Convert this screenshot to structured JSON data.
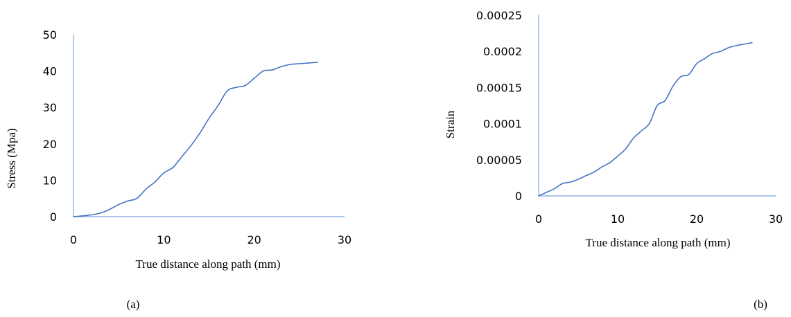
{
  "chart_data": [
    {
      "type": "line",
      "caption": "(a)",
      "xlabel": "True distance along path (mm)",
      "ylabel": "Stress (Mpa)",
      "xlim": [
        0,
        30
      ],
      "ylim": [
        0,
        50
      ],
      "xticks": [
        "0",
        "10",
        "20",
        "30"
      ],
      "yticks": [
        "0",
        "10",
        "20",
        "30",
        "40",
        "50"
      ],
      "grid": false,
      "color": "#4472c4",
      "series": [
        {
          "x": [
            0,
            1,
            2,
            3,
            4,
            5,
            6,
            7,
            8,
            9,
            10,
            11,
            12,
            13,
            14,
            15,
            16,
            17,
            18,
            19,
            20,
            21,
            22,
            23,
            24,
            25,
            26,
            27
          ],
          "values": [
            0,
            0.2,
            0.5,
            1.0,
            2.0,
            3.3,
            4.3,
            5.0,
            7.5,
            9.5,
            12.0,
            13.5,
            16.5,
            19.5,
            23.0,
            27.0,
            30.5,
            34.5,
            35.5,
            36.0,
            38.0,
            40.0,
            40.3,
            41.2,
            41.8,
            42.0,
            42.2,
            42.4
          ]
        }
      ]
    },
    {
      "type": "line",
      "caption": "(b)",
      "xlabel": "True distance along path (mm)",
      "ylabel": "Strain",
      "xlim": [
        0,
        30
      ],
      "ylim": [
        0,
        0.00025
      ],
      "xticks": [
        "0",
        "10",
        "20",
        "30"
      ],
      "yticks": [
        "0",
        "0.00005",
        "0.0001",
        "0.00015",
        "0.0002",
        "0.00025"
      ],
      "grid": false,
      "color": "#4472c4",
      "series": [
        {
          "x": [
            0,
            1,
            2,
            3,
            4,
            5,
            6,
            7,
            8,
            9,
            10,
            11,
            12,
            13,
            14,
            15,
            16,
            17,
            18,
            19,
            20,
            21,
            22,
            23,
            24,
            25,
            26,
            27
          ],
          "values": [
            0,
            5e-06,
            1e-05,
            1.7e-05,
            1.9e-05,
            2.3e-05,
            2.8e-05,
            3.3e-05,
            4e-05,
            4.6e-05,
            5.5e-05,
            6.5e-05,
            8e-05,
            9e-05,
            0.0001,
            0.000125,
            0.000132,
            0.000152,
            0.000165,
            0.000168,
            0.000183,
            0.00019,
            0.000197,
            0.0002,
            0.000205,
            0.000208,
            0.00021,
            0.000212
          ]
        }
      ]
    }
  ]
}
